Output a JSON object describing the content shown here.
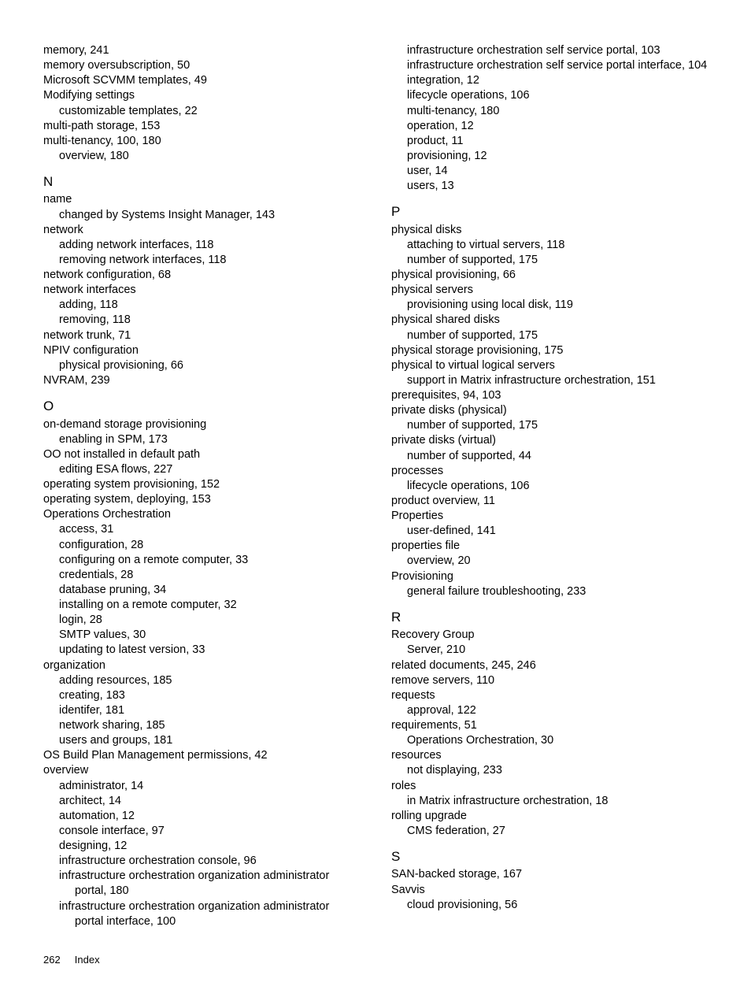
{
  "columns": [
    {
      "sections": [
        {
          "heading": null,
          "lines": [
            {
              "indent": 0,
              "text": "memory, 241"
            },
            {
              "indent": 0,
              "text": "memory oversubscription, 50"
            },
            {
              "indent": 0,
              "text": "Microsoft SCVMM templates, 49"
            },
            {
              "indent": 0,
              "text": "Modifying settings"
            },
            {
              "indent": 1,
              "text": "customizable templates, 22"
            },
            {
              "indent": 0,
              "text": "multi-path storage, 153"
            },
            {
              "indent": 0,
              "text": "multi-tenancy, 100, 180"
            },
            {
              "indent": 1,
              "text": "overview, 180"
            }
          ]
        },
        {
          "heading": "N",
          "lines": [
            {
              "indent": 0,
              "text": "name"
            },
            {
              "indent": 1,
              "text": "changed by Systems Insight Manager, 143"
            },
            {
              "indent": 0,
              "text": "network"
            },
            {
              "indent": 1,
              "text": "adding network interfaces, 118"
            },
            {
              "indent": 1,
              "text": "removing network interfaces, 118"
            },
            {
              "indent": 0,
              "text": "network configuration, 68"
            },
            {
              "indent": 0,
              "text": "network interfaces"
            },
            {
              "indent": 1,
              "text": "adding, 118"
            },
            {
              "indent": 1,
              "text": "removing, 118"
            },
            {
              "indent": 0,
              "text": "network trunk, 71"
            },
            {
              "indent": 0,
              "text": "NPIV configuration"
            },
            {
              "indent": 1,
              "text": "physical provisioning, 66"
            },
            {
              "indent": 0,
              "text": "NVRAM, 239"
            }
          ]
        },
        {
          "heading": "O",
          "lines": [
            {
              "indent": 0,
              "text": "on-demand storage provisioning"
            },
            {
              "indent": 1,
              "text": "enabling in SPM, 173"
            },
            {
              "indent": 0,
              "text": "OO not installed in default path"
            },
            {
              "indent": 1,
              "text": "editing ESA flows, 227"
            },
            {
              "indent": 0,
              "text": "operating system provisioning, 152"
            },
            {
              "indent": 0,
              "text": "operating system, deploying, 153"
            },
            {
              "indent": 0,
              "text": "Operations Orchestration"
            },
            {
              "indent": 1,
              "text": "access, 31"
            },
            {
              "indent": 1,
              "text": "configuration, 28"
            },
            {
              "indent": 1,
              "text": "configuring on a remote computer, 33"
            },
            {
              "indent": 1,
              "text": "credentials, 28"
            },
            {
              "indent": 1,
              "text": "database pruning, 34"
            },
            {
              "indent": 1,
              "text": "installing on a remote computer, 32"
            },
            {
              "indent": 1,
              "text": "login, 28"
            },
            {
              "indent": 1,
              "text": "SMTP values, 30"
            },
            {
              "indent": 1,
              "text": "updating to latest version, 33"
            },
            {
              "indent": 0,
              "text": "organization"
            },
            {
              "indent": 1,
              "text": "adding resources, 185"
            },
            {
              "indent": 1,
              "text": "creating, 183"
            },
            {
              "indent": 1,
              "text": "identifer, 181"
            },
            {
              "indent": 1,
              "text": "network sharing, 185"
            },
            {
              "indent": 1,
              "text": "users and groups, 181"
            },
            {
              "indent": 0,
              "text": "OS Build Plan Management permissions, 42"
            },
            {
              "indent": 0,
              "text": "overview"
            },
            {
              "indent": 1,
              "text": "administrator, 14"
            },
            {
              "indent": 1,
              "text": "architect, 14"
            },
            {
              "indent": 1,
              "text": "automation, 12"
            },
            {
              "indent": 1,
              "text": "console interface, 97"
            },
            {
              "indent": 1,
              "text": "designing, 12"
            },
            {
              "indent": 1,
              "text": "infrastructure orchestration console, 96"
            },
            {
              "indent": 1,
              "text": "infrastructure orchestration organization administrator portal, 180",
              "wrap": true
            },
            {
              "indent": 1,
              "text": "infrastructure orchestration organization administrator portal interface, 100",
              "wrap": true
            }
          ]
        }
      ]
    },
    {
      "sections": [
        {
          "heading": null,
          "lines": [
            {
              "indent": 1,
              "text": "infrastructure orchestration self service portal, 103"
            },
            {
              "indent": 1,
              "text": "infrastructure orchestration self service portal interface, 104",
              "wrap": true
            },
            {
              "indent": 1,
              "text": "integration, 12"
            },
            {
              "indent": 1,
              "text": "lifecycle operations, 106"
            },
            {
              "indent": 1,
              "text": "multi-tenancy, 180"
            },
            {
              "indent": 1,
              "text": "operation, 12"
            },
            {
              "indent": 1,
              "text": "product, 11"
            },
            {
              "indent": 1,
              "text": "provisioning, 12"
            },
            {
              "indent": 1,
              "text": "user, 14"
            },
            {
              "indent": 1,
              "text": "users, 13"
            }
          ]
        },
        {
          "heading": "P",
          "lines": [
            {
              "indent": 0,
              "text": "physical disks"
            },
            {
              "indent": 1,
              "text": "attaching to virtual servers, 118"
            },
            {
              "indent": 1,
              "text": "number of supported, 175"
            },
            {
              "indent": 0,
              "text": "physical provisioning, 66"
            },
            {
              "indent": 0,
              "text": "physical servers"
            },
            {
              "indent": 1,
              "text": "provisioning using local disk, 119"
            },
            {
              "indent": 0,
              "text": "physical shared disks"
            },
            {
              "indent": 1,
              "text": "number of supported, 175"
            },
            {
              "indent": 0,
              "text": "physical storage provisioning, 175"
            },
            {
              "indent": 0,
              "text": "physical to virtual logical servers"
            },
            {
              "indent": 1,
              "text": "support in Matrix infrastructure orchestration, 151"
            },
            {
              "indent": 0,
              "text": "prerequisites, 94, 103"
            },
            {
              "indent": 0,
              "text": "private disks (physical)"
            },
            {
              "indent": 1,
              "text": "number of supported, 175"
            },
            {
              "indent": 0,
              "text": "private disks (virtual)"
            },
            {
              "indent": 1,
              "text": "number of supported, 44"
            },
            {
              "indent": 0,
              "text": "processes"
            },
            {
              "indent": 1,
              "text": "lifecycle operations, 106"
            },
            {
              "indent": 0,
              "text": "product overview, 11"
            },
            {
              "indent": 0,
              "text": "Properties"
            },
            {
              "indent": 1,
              "text": "user-defined, 141"
            },
            {
              "indent": 0,
              "text": "properties file"
            },
            {
              "indent": 1,
              "text": "overview, 20"
            },
            {
              "indent": 0,
              "text": "Provisioning"
            },
            {
              "indent": 1,
              "text": "general failure troubleshooting, 233"
            }
          ]
        },
        {
          "heading": "R",
          "lines": [
            {
              "indent": 0,
              "text": "Recovery Group"
            },
            {
              "indent": 1,
              "text": "Server, 210"
            },
            {
              "indent": 0,
              "text": "related documents, 245, 246"
            },
            {
              "indent": 0,
              "text": "remove servers, 110"
            },
            {
              "indent": 0,
              "text": "requests"
            },
            {
              "indent": 1,
              "text": "approval, 122"
            },
            {
              "indent": 0,
              "text": "requirements, 51"
            },
            {
              "indent": 1,
              "text": "Operations Orchestration, 30"
            },
            {
              "indent": 0,
              "text": "resources"
            },
            {
              "indent": 1,
              "text": "not displaying, 233"
            },
            {
              "indent": 0,
              "text": "roles"
            },
            {
              "indent": 1,
              "text": "in Matrix infrastructure orchestration, 18"
            },
            {
              "indent": 0,
              "text": "rolling upgrade"
            },
            {
              "indent": 1,
              "text": "CMS federation, 27"
            }
          ]
        },
        {
          "heading": "S",
          "lines": [
            {
              "indent": 0,
              "text": "SAN-backed storage, 167"
            },
            {
              "indent": 0,
              "text": "Savvis"
            },
            {
              "indent": 1,
              "text": "cloud provisioning, 56"
            }
          ]
        }
      ]
    }
  ],
  "footer": {
    "page": "262",
    "label": "Index"
  }
}
